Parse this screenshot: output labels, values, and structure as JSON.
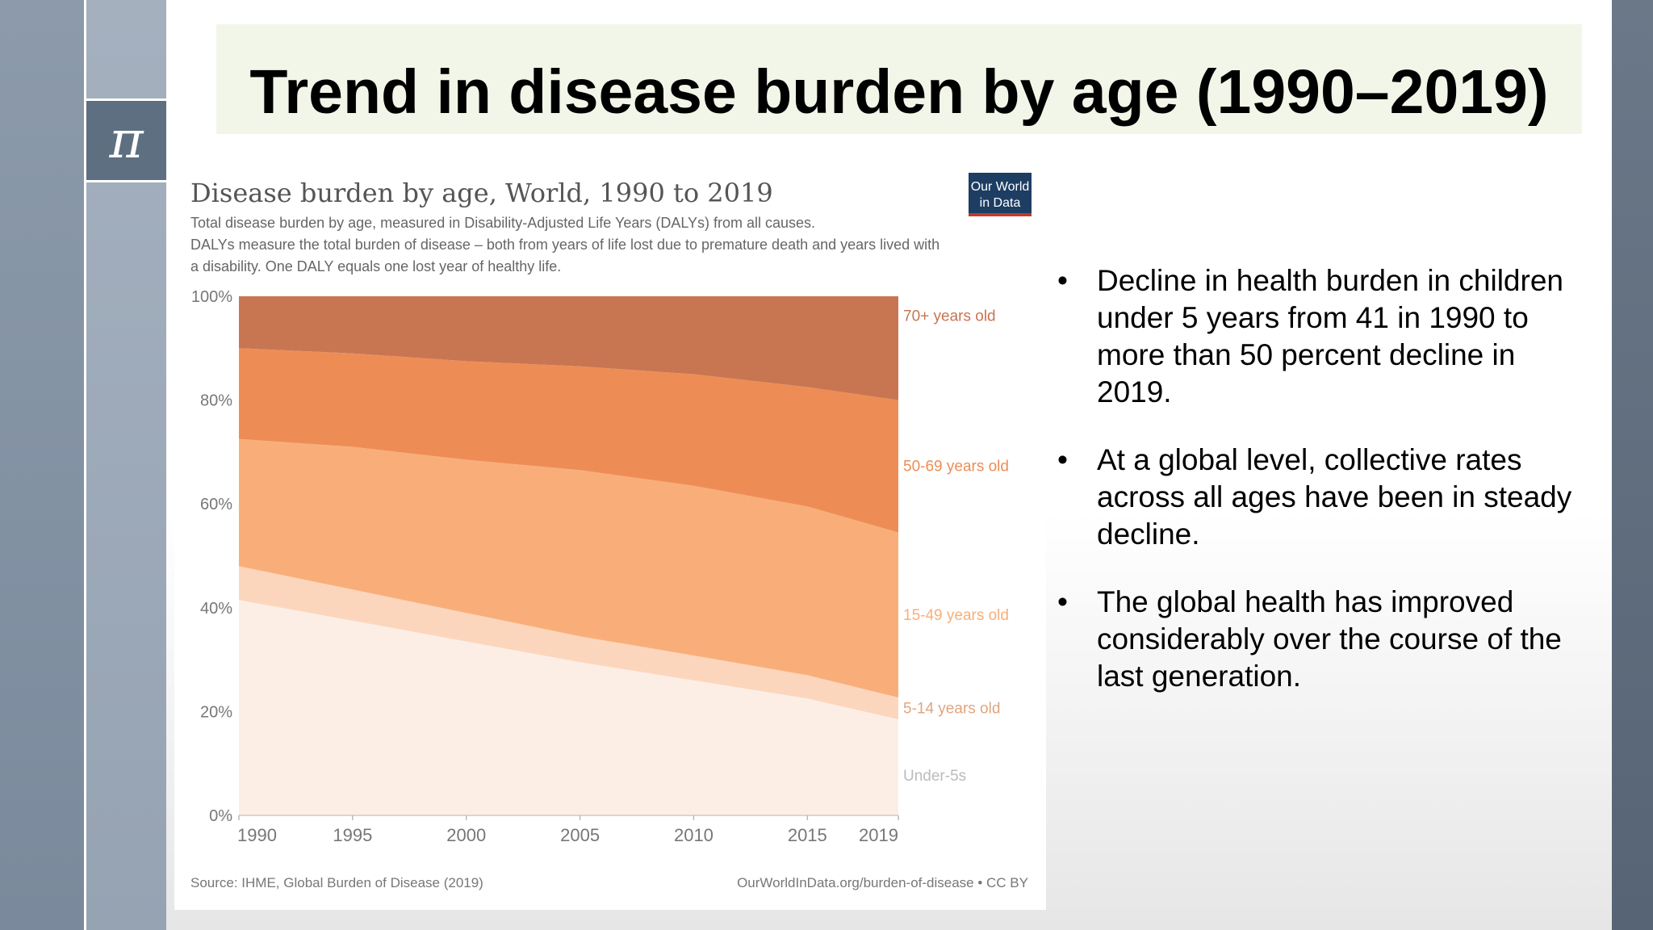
{
  "slide": {
    "title": "Trend in disease burden by age (1990–2019)",
    "logo_glyph": "π",
    "bullets": [
      "Decline in health burden in children under 5 years from 41 in 1990 to more than 50 percent decline in 2019.",
      "At a global level, collective rates across all ages have been in steady decline.",
      "The global health has improved considerably over the course of the last generation."
    ],
    "bullet_symbol": "•"
  },
  "chart_data": {
    "type": "area",
    "stacked": "percent",
    "title": "Disease burden by age, World, 1990 to 2019",
    "subtitle_lines": [
      "Total disease burden by age, measured in Disability-Adjusted Life Years (DALYs) from all causes.",
      "DALYs measure the total burden of disease – both from years of life lost due to premature death and years lived with",
      "a disability. One DALY equals one lost year of healthy life."
    ],
    "logo_lines": [
      "Our World",
      "in Data"
    ],
    "x": [
      1990,
      1995,
      2000,
      2005,
      2010,
      2015,
      2019
    ],
    "x_tick_labels": [
      "1990",
      "1995",
      "2000",
      "2005",
      "2010",
      "2015",
      "2019"
    ],
    "y_tick_labels": [
      "0%",
      "20%",
      "40%",
      "60%",
      "80%",
      "100%"
    ],
    "ylim": [
      0,
      100
    ],
    "series": [
      {
        "name": "Under-5s",
        "color": "#fdeee5",
        "values": [
          41.5,
          37.5,
          33.5,
          29.5,
          26,
          22.5,
          18.5
        ]
      },
      {
        "name": "5-14 years old",
        "color": "#fbd6bd",
        "values": [
          6.5,
          6,
          5.5,
          5,
          4.8,
          4.5,
          4.2
        ]
      },
      {
        "name": "15-49 years old",
        "color": "#f9ae7a",
        "values": [
          24.5,
          27.5,
          29.5,
          32,
          32.7,
          32.5,
          31.8
        ]
      },
      {
        "name": "50-69 years old",
        "color": "#ed8d55",
        "values": [
          17.5,
          18,
          19,
          20,
          21.5,
          23,
          25.5
        ]
      },
      {
        "name": "70+ years old",
        "color": "#c87552",
        "values": [
          10,
          11,
          12.5,
          13.5,
          15,
          17.5,
          20
        ]
      }
    ],
    "source": "Source: IHME, Global Burden of Disease (2019)",
    "credit": "OurWorldInData.org/burden-of-disease • CC BY",
    "logo_bg": "#1d3d63",
    "logo_stripe": "#c0392b"
  }
}
